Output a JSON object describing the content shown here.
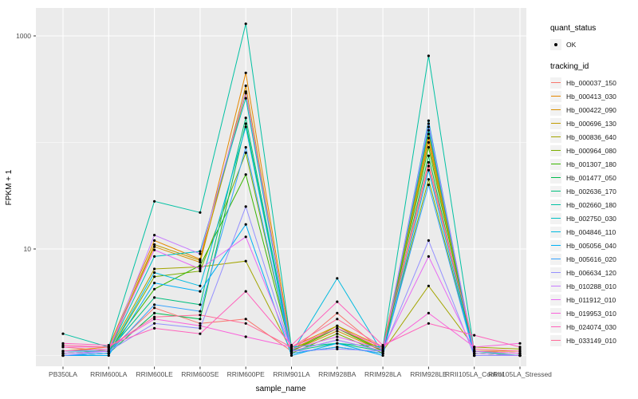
{
  "chart_data": {
    "type": "line",
    "title": "",
    "xlabel": "sample_name",
    "ylabel": "FPKM + 1",
    "y_scale": "log10",
    "y_tick_labels": [
      "10",
      "1000"
    ],
    "y_tick_values": [
      10,
      1000
    ],
    "y_minor_gridlines": [
      1,
      100
    ],
    "ylim": [
      0.8,
      1800
    ],
    "grid": true,
    "legend_position": "right",
    "panel_bg": "#EBEBEB",
    "grid_color": "#FFFFFF",
    "tick_label_color": "#4D4D4D",
    "point_color": "#000000",
    "categories": [
      "PB350LA",
      "RRIM600LA",
      "RRIM600LE",
      "RRIM600SE",
      "RRIM600PE",
      "RRIM901LA",
      "RRIM928BA",
      "RRIM928LA",
      "RRIM928LE",
      "RRII105LA_Control",
      "RRII105LA_Stressed"
    ],
    "legend": {
      "quant_status": {
        "title": "quant_status",
        "items": [
          {
            "label": "OK",
            "symbol": "point"
          }
        ]
      },
      "tracking_id": {
        "title": "tracking_id"
      }
    },
    "series": [
      {
        "name": "Hb_000037_150",
        "color": "#F8766D",
        "values": [
          1.2,
          1.1,
          2.8,
          2.0,
          2.2,
          1.1,
          2.5,
          1.1,
          60,
          1.1,
          1.05
        ]
      },
      {
        "name": "Hb_000413_030",
        "color": "#E58700",
        "values": [
          1.1,
          1.2,
          12.0,
          8.0,
          450,
          1.2,
          1.9,
          1.2,
          120,
          1.1,
          1.1
        ]
      },
      {
        "name": "Hb_000422_090",
        "color": "#D89000",
        "values": [
          1.05,
          1.1,
          10.5,
          7.5,
          340,
          1.1,
          1.7,
          1.1,
          110,
          1.05,
          1.0
        ]
      },
      {
        "name": "Hb_000696_130",
        "color": "#C09B00",
        "values": [
          1.1,
          1.15,
          11.0,
          7.8,
          290,
          1.15,
          1.8,
          1.15,
          100,
          1.1,
          1.05
        ]
      },
      {
        "name": "Hb_000836_640",
        "color": "#A3A500",
        "values": [
          1.05,
          1.1,
          6.5,
          6.8,
          7.7,
          1.1,
          1.9,
          1.1,
          4.5,
          1.2,
          1.15
        ]
      },
      {
        "name": "Hb_000964_080",
        "color": "#7CAE00",
        "values": [
          1.0,
          1.05,
          5.5,
          6.2,
          80,
          1.05,
          1.6,
          1.05,
          45,
          1.0,
          1.0
        ]
      },
      {
        "name": "Hb_001307_180",
        "color": "#39B600",
        "values": [
          1.1,
          1.1,
          4.2,
          7.0,
          50,
          1.1,
          1.8,
          1.1,
          90,
          1.05,
          1.0
        ]
      },
      {
        "name": "Hb_001477_050",
        "color": "#00BB4E",
        "values": [
          1.0,
          1.05,
          2.5,
          2.2,
          150,
          1.05,
          1.2,
          1.05,
          75,
          1.0,
          1.0
        ]
      },
      {
        "name": "Hb_002636_170",
        "color": "#00BF7D",
        "values": [
          1.05,
          1.1,
          3.5,
          3.0,
          170,
          1.1,
          1.3,
          1.1,
          130,
          1.05,
          1.0
        ]
      },
      {
        "name": "Hb_002660_180",
        "color": "#00C1A3",
        "values": [
          1.6,
          1.2,
          28,
          22,
          1300,
          1.2,
          1.3,
          1.2,
          650,
          1.1,
          1.0
        ]
      },
      {
        "name": "Hb_002750_030",
        "color": "#00BFC4",
        "values": [
          1.1,
          1.1,
          8.5,
          9.5,
          260,
          1.1,
          1.4,
          1.1,
          140,
          1.0,
          1.0
        ]
      },
      {
        "name": "Hb_004846_110",
        "color": "#00BAE0",
        "values": [
          1.0,
          1.05,
          6.0,
          4.5,
          140,
          1.05,
          5.3,
          1.05,
          160,
          1.0,
          1.0
        ]
      },
      {
        "name": "Hb_005056_040",
        "color": "#00B0F6",
        "values": [
          1.0,
          1.0,
          4.8,
          4.0,
          17,
          1.0,
          1.3,
          1.0,
          55,
          1.0,
          1.0
        ]
      },
      {
        "name": "Hb_005616_020",
        "color": "#35A2FF",
        "values": [
          1.0,
          1.05,
          3.0,
          2.6,
          90,
          1.05,
          1.2,
          1.05,
          40,
          1.0,
          1.0
        ]
      },
      {
        "name": "Hb_006634_120",
        "color": "#9590FF",
        "values": [
          1.0,
          1.1,
          2.0,
          1.8,
          25,
          1.1,
          1.15,
          1.1,
          12,
          1.0,
          1.0
        ]
      },
      {
        "name": "Hb_010288_010",
        "color": "#C77CFF",
        "values": [
          1.05,
          1.1,
          13.5,
          9.0,
          300,
          1.1,
          1.4,
          1.1,
          150,
          1.05,
          1.0
        ]
      },
      {
        "name": "Hb_011912_010",
        "color": "#E76BF3",
        "values": [
          1.1,
          1.15,
          9.8,
          6.5,
          13,
          1.15,
          1.5,
          1.15,
          8.5,
          1.1,
          1.05
        ]
      },
      {
        "name": "Hb_019953_010",
        "color": "#FA62DB",
        "values": [
          1.2,
          1.2,
          2.2,
          1.9,
          1.5,
          1.2,
          1.8,
          1.2,
          2.5,
          1.2,
          1.3
        ]
      },
      {
        "name": "Hb_024074_030",
        "color": "#FF62BC",
        "values": [
          1.3,
          1.25,
          1.8,
          1.6,
          4.0,
          1.25,
          3.2,
          1.25,
          2.0,
          1.55,
          1.2
        ]
      },
      {
        "name": "Hb_033149_010",
        "color": "#FF6A98",
        "values": [
          1.25,
          1.2,
          2.3,
          2.4,
          2.0,
          1.2,
          2.2,
          1.2,
          65,
          1.15,
          1.1
        ]
      }
    ]
  }
}
